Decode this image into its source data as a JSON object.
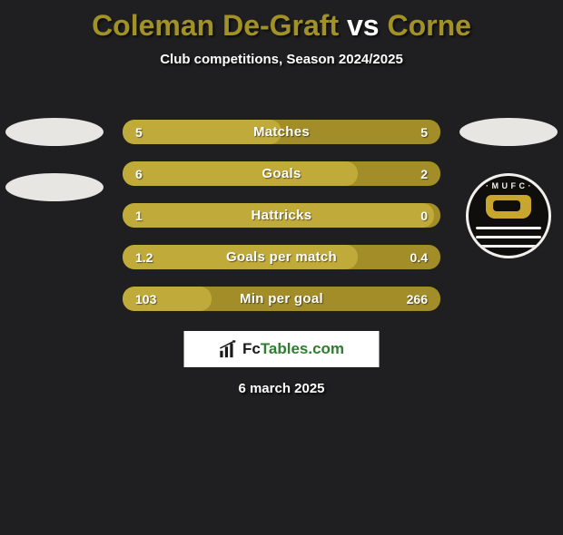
{
  "title": {
    "player1": "Coleman De-Graft",
    "vs": "vs",
    "player2": "Corne",
    "color_player": "#a19127",
    "color_vs": "#ffffff"
  },
  "subtitle": "Club competitions, Season 2024/2025",
  "date": "6 march 2025",
  "watermark": {
    "prefix": "Fc",
    "suffix": "Tables.com"
  },
  "badge_right": {
    "text_top": "· M U F C ·"
  },
  "stats": {
    "row_bg": "#a28d28",
    "fill_bg": "#c0aa3a",
    "rows": [
      {
        "label": "Matches",
        "left": "5",
        "right": "5",
        "fill_pct": 50
      },
      {
        "label": "Goals",
        "left": "6",
        "right": "2",
        "fill_pct": 74
      },
      {
        "label": "Hattricks",
        "left": "1",
        "right": "0",
        "fill_pct": 98
      },
      {
        "label": "Goals per match",
        "left": "1.2",
        "right": "0.4",
        "fill_pct": 74
      },
      {
        "label": "Min per goal",
        "left": "103",
        "right": "266",
        "fill_pct": 28
      }
    ]
  }
}
